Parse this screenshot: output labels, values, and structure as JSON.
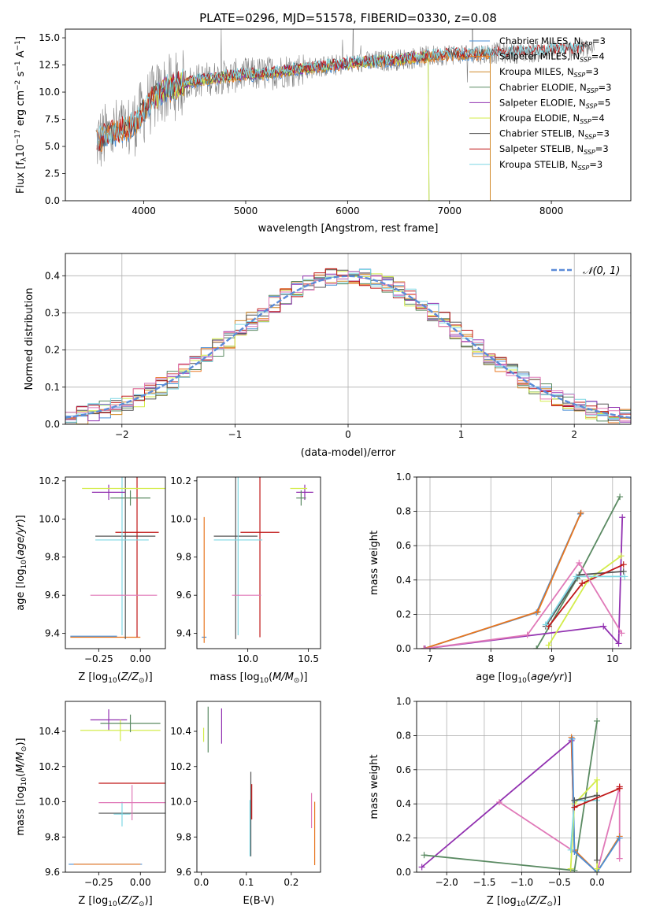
{
  "figure": {
    "title": "PLATE=0296, MJD=51578, FIBERID=0330, z=0.08"
  },
  "colors": {
    "chabrier_miles": "#4a8fd6",
    "salpeter_miles": "#e8761f",
    "kroupa_miles": "#d08a2a",
    "chabrier_elodie": "#5a8a62",
    "salpeter_elodie": "#9130b0",
    "kroupa_elodie": "#d3ec4a",
    "chabrier_stelib": "#555555",
    "salpeter_stelib": "#c01818",
    "kroupa_stelib": "#7fd7e3",
    "data": "#808080",
    "normal": "#5b8bd8",
    "pink": "#e079b8"
  },
  "chart_data": [
    {
      "id": "spectrum",
      "type": "line",
      "xlabel": "wavelength [Angstrom, rest frame]",
      "ylabel": "Flux [fλ10⁻¹⁷ erg cm⁻² s⁻¹ A⁻¹]",
      "xlim": [
        3230,
        8780
      ],
      "ylim": [
        0,
        15.8
      ],
      "xticks": [
        4000,
        5000,
        6000,
        7000,
        8000
      ],
      "yticks": [
        0.0,
        2.5,
        5.0,
        7.5,
        10.0,
        12.5,
        15.0
      ],
      "legend_position": "right",
      "legend": [
        {
          "label": "Chabrier MILES, NSSP=3"
        },
        {
          "label": "Salpeter MILES, NSSP=4"
        },
        {
          "label": "Kroupa MILES, NSSP=3"
        },
        {
          "label": "Chabrier ELODIE, NSSP=3"
        },
        {
          "label": "Salpeter ELODIE, NSSP=5"
        },
        {
          "label": "Kroupa ELODIE, NSSP=4"
        },
        {
          "label": "Chabrier STELIB, NSSP=3"
        },
        {
          "label": "Salpeter STELIB, NSSP=3"
        },
        {
          "label": "Kroupa STELIB, NSSP=3"
        }
      ],
      "continuum_x": [
        3550,
        3700,
        3850,
        3950,
        4050,
        4200,
        4400,
        4600,
        4800,
        5000,
        5200,
        5400,
        5600,
        5800,
        6000,
        6200,
        6400,
        6600,
        6800,
        7000,
        7200,
        7400,
        7600,
        7800,
        8000,
        8200,
        8400
      ],
      "continuum_y": [
        5.5,
        6.3,
        6.6,
        7.6,
        9.0,
        10.2,
        10.8,
        11.2,
        11.4,
        11.6,
        11.7,
        12.0,
        12.2,
        12.4,
        12.6,
        12.8,
        12.9,
        13.1,
        13.3,
        13.5,
        13.5,
        13.6,
        13.6,
        13.7,
        13.8,
        13.9,
        14.0
      ]
    },
    {
      "id": "residuals",
      "type": "line",
      "xlabel": "(data-model)/error",
      "ylabel": "Normed distribution",
      "xlim": [
        -2.5,
        2.5
      ],
      "ylim": [
        0,
        0.46
      ],
      "xticks": [
        -2,
        -1,
        0,
        1,
        2
      ],
      "yticks": [
        0.0,
        0.1,
        0.2,
        0.3,
        0.4
      ],
      "grid": true,
      "legend_position": "top-right",
      "curve_label": "𝒩(0, 1)"
    },
    {
      "id": "z_age",
      "type": "scatter",
      "xlabel": "Z [log10(Z/Z⊙)]",
      "ylabel": "age  [log10(age/yr)]",
      "xlim": [
        -0.45,
        0.15
      ],
      "ylim": [
        9.32,
        10.22
      ],
      "xticks": [
        -0.25,
        0.0
      ],
      "xticklabels": [
        "−0.25",
        "0.00"
      ],
      "yticks": [
        9.4,
        9.6,
        9.8,
        10.0,
        10.2
      ],
      "points": [
        {
          "c": "chabrier_miles",
          "x": -0.28,
          "xerr": 0.14,
          "y": 9.385,
          "yerr": 0.0
        },
        {
          "c": "salpeter_miles",
          "x": -0.21,
          "xerr": 0.21,
          "y": 9.38,
          "yerr": 0.0
        },
        {
          "c": "chabrier_stelib",
          "x": -0.09,
          "xerr": 0.18,
          "y": 9.91,
          "yerr": 0.54
        },
        {
          "c": "salpeter_stelib",
          "x": -0.02,
          "xerr": 0.13,
          "y": 9.93,
          "yerr": 0.55
        },
        {
          "c": "kroupa_stelib",
          "x": -0.11,
          "xerr": 0.16,
          "y": 9.89,
          "yerr": 0.5
        },
        {
          "c": "pink",
          "x": -0.1,
          "xerr": 0.2,
          "y": 9.6,
          "yerr": 0.0
        },
        {
          "c": "salpeter_elodie",
          "x": -0.19,
          "xerr": 0.1,
          "y": 10.14,
          "yerr": 0.04
        },
        {
          "c": "kroupa_elodie",
          "x": -0.1,
          "xerr": 0.25,
          "y": 10.16,
          "yerr": 0.0
        },
        {
          "c": "chabrier_elodie",
          "x": -0.06,
          "xerr": 0.12,
          "y": 10.11,
          "yerr": 0.04
        }
      ]
    },
    {
      "id": "mass_age",
      "type": "scatter",
      "xlabel": "mass [log10(M/M⊙)]",
      "xlim": [
        9.58,
        10.6
      ],
      "ylim": [
        9.32,
        10.22
      ],
      "xticks": [
        10.0,
        10.5
      ],
      "yticks": [
        9.4,
        9.6,
        9.8,
        10.0,
        10.2
      ],
      "points": [
        {
          "c": "chabrier_miles",
          "x": 9.64,
          "xerr": 0.0,
          "y": 9.38,
          "yerr": 0.0
        },
        {
          "c": "salpeter_miles",
          "x": 9.64,
          "xerr": 0.0,
          "y": 9.68,
          "yerr": 0.33
        },
        {
          "c": "chabrier_stelib",
          "x": 9.9,
          "xerr": 0.18,
          "y": 9.91,
          "yerr": 0.54
        },
        {
          "c": "salpeter_stelib",
          "x": 10.1,
          "xerr": 0.16,
          "y": 9.93,
          "yerr": 0.55
        },
        {
          "c": "kroupa_stelib",
          "x": 9.92,
          "xerr": 0.2,
          "y": 9.89,
          "yerr": 0.5
        },
        {
          "c": "pink",
          "x": 9.99,
          "xerr": 0.12,
          "y": 9.6,
          "yerr": 0.0
        },
        {
          "c": "salpeter_elodie",
          "x": 10.47,
          "xerr": 0.07,
          "y": 10.14,
          "yerr": 0.04
        },
        {
          "c": "kroupa_elodie",
          "x": 10.42,
          "xerr": 0.07,
          "y": 10.16,
          "yerr": 0.0
        },
        {
          "c": "chabrier_elodie",
          "x": 10.44,
          "xerr": 0.04,
          "y": 10.11,
          "yerr": 0.04
        }
      ]
    },
    {
      "id": "age_weight",
      "type": "line",
      "xlabel": "age  [log10(age/yr)]",
      "ylabel": "mass weight",
      "xlim": [
        6.78,
        10.3
      ],
      "ylim": [
        0,
        1
      ],
      "xticks": [
        7,
        8,
        9,
        10
      ],
      "yticks": [
        0.0,
        0.2,
        0.4,
        0.6,
        0.8,
        1.0
      ],
      "grid": true,
      "series": [
        {
          "c": "chabrier_miles",
          "x": [
            6.9,
            8.75,
            9.47
          ],
          "y": [
            0.0,
            0.21,
            0.785
          ]
        },
        {
          "c": "salpeter_miles",
          "x": [
            6.9,
            8.77,
            9.48
          ],
          "y": [
            0.0,
            0.215,
            0.79
          ]
        },
        {
          "c": "chabrier_elodie",
          "x": [
            8.75,
            9.42,
            10.12
          ],
          "y": [
            0.0,
            0.41,
            0.885
          ]
        },
        {
          "c": "salpeter_elodie",
          "x": [
            6.92,
            9.85,
            10.1,
            10.16
          ],
          "y": [
            0.0,
            0.13,
            0.03,
            0.765
          ]
        },
        {
          "c": "kroupa_elodie",
          "x": [
            8.95,
            9.6,
            10.14
          ],
          "y": [
            0.02,
            0.4,
            0.54
          ]
        },
        {
          "c": "chabrier_stelib",
          "x": [
            8.9,
            9.45,
            10.18
          ],
          "y": [
            0.13,
            0.43,
            0.45
          ]
        },
        {
          "c": "salpeter_stelib",
          "x": [
            8.95,
            9.5,
            10.18
          ],
          "y": [
            0.13,
            0.38,
            0.49
          ]
        },
        {
          "c": "kroupa_stelib",
          "x": [
            8.9,
            9.4,
            10.2
          ],
          "y": [
            0.14,
            0.42,
            0.42
          ]
        },
        {
          "c": "pink",
          "x": [
            6.9,
            8.6,
            9.45,
            10.15
          ],
          "y": [
            0.0,
            0.08,
            0.5,
            0.09
          ]
        }
      ]
    },
    {
      "id": "z_mass",
      "type": "scatter",
      "xlabel": "Z [log10(Z/Z⊙)]",
      "ylabel": "mass [log10(M/M⊙)]",
      "xlim": [
        -0.45,
        0.15
      ],
      "ylim": [
        9.6,
        10.57
      ],
      "xticks": [
        -0.25,
        0.0
      ],
      "xticklabels": [
        "−0.25",
        "0.00"
      ],
      "yticks": [
        9.6,
        9.8,
        10.0,
        10.2,
        10.4
      ],
      "points": [
        {
          "c": "chabrier_miles",
          "x": -0.21,
          "xerr": 0.22,
          "y": 9.645,
          "yerr": 0.0
        },
        {
          "c": "salpeter_miles",
          "x": -0.2,
          "xerr": 0.2,
          "y": 9.645,
          "yerr": 0.0
        },
        {
          "c": "chabrier_stelib",
          "x": -0.05,
          "xerr": 0.2,
          "y": 9.935,
          "yerr": 0.0
        },
        {
          "c": "salpeter_stelib",
          "x": -0.05,
          "xerr": 0.2,
          "y": 10.105,
          "yerr": 0.0
        },
        {
          "c": "kroupa_stelib",
          "x": -0.11,
          "xerr": 0.05,
          "y": 9.93,
          "yerr": 0.07
        },
        {
          "c": "pink",
          "x": -0.05,
          "xerr": 0.2,
          "y": 9.995,
          "yerr": 0.1
        },
        {
          "c": "salpeter_elodie",
          "x": -0.19,
          "xerr": 0.11,
          "y": 10.465,
          "yerr": 0.06
        },
        {
          "c": "kroupa_elodie",
          "x": -0.12,
          "xerr": 0.24,
          "y": 10.405,
          "yerr": 0.06
        },
        {
          "c": "chabrier_elodie",
          "x": -0.06,
          "xerr": 0.18,
          "y": 10.445,
          "yerr": 0.05
        }
      ]
    },
    {
      "id": "ebv_mass",
      "type": "scatter",
      "xlabel": "E(B-V)",
      "xlim": [
        -0.01,
        0.265
      ],
      "ylim": [
        9.6,
        10.57
      ],
      "xticks": [
        0.0,
        0.1,
        0.2
      ],
      "yticks": [
        9.6,
        9.8,
        10.0,
        10.2,
        10.4
      ],
      "points": [
        {
          "c": "kroupa_elodie",
          "x": 0.005,
          "y": 10.38,
          "yerr": 0.04
        },
        {
          "c": "chabrier_elodie",
          "x": 0.015,
          "y": 10.41,
          "yerr": 0.13
        },
        {
          "c": "salpeter_elodie",
          "x": 0.045,
          "y": 10.43,
          "yerr": 0.1
        },
        {
          "c": "chabrier_stelib",
          "x": 0.11,
          "y": 9.93,
          "yerr": 0.24
        },
        {
          "c": "salpeter_stelib",
          "x": 0.112,
          "y": 10.0,
          "yerr": 0.1
        },
        {
          "c": "kroupa_stelib",
          "x": 0.108,
          "y": 9.85,
          "yerr": 0.16
        },
        {
          "c": "pink",
          "x": 0.245,
          "y": 9.95,
          "yerr": 0.1
        },
        {
          "c": "salpeter_miles",
          "x": 0.252,
          "y": 9.82,
          "yerr": 0.18
        }
      ]
    },
    {
      "id": "z_weight",
      "type": "line",
      "xlabel": "Z [log10(Z/Z⊙)]",
      "ylabel": "mass weight",
      "xlim": [
        -2.4,
        0.45
      ],
      "ylim": [
        0,
        1
      ],
      "xticks": [
        -2.0,
        -1.5,
        -1.0,
        -0.5,
        0.0
      ],
      "xticklabels": [
        "−2.0",
        "−1.5",
        "−1.0",
        "−0.5",
        "0.0"
      ],
      "yticks": [
        0.0,
        0.2,
        0.4,
        0.6,
        0.8,
        1.0
      ],
      "grid": true,
      "series": [
        {
          "c": "salpeter_elodie",
          "x": [
            -2.33,
            -0.34,
            -0.3
          ],
          "y": [
            0.03,
            0.77,
            0.13
          ]
        },
        {
          "c": "chabrier_elodie",
          "x": [
            -2.3,
            -0.3,
            0.0
          ],
          "y": [
            0.1,
            0.01,
            0.885
          ]
        },
        {
          "c": "pink",
          "x": [
            -1.3,
            -0.3,
            0.0,
            0.3,
            0.3
          ],
          "y": [
            0.41,
            0.12,
            0.0,
            0.5,
            0.08
          ]
        },
        {
          "c": "salpeter_miles",
          "x": [
            -0.34,
            -0.3,
            0.0,
            0.3
          ],
          "y": [
            0.79,
            0.13,
            0.0,
            0.21
          ]
        },
        {
          "c": "chabrier_miles",
          "x": [
            -0.33,
            -0.3,
            0.0,
            0.3
          ],
          "y": [
            0.78,
            0.12,
            0.0,
            0.2
          ]
        },
        {
          "c": "kroupa_elodie",
          "x": [
            -0.35,
            -0.3,
            0.0,
            0.0
          ],
          "y": [
            0.02,
            0.4,
            0.54,
            0.02
          ]
        },
        {
          "c": "kroupa_stelib",
          "x": [
            -0.35,
            -0.3,
            0.0
          ],
          "y": [
            0.13,
            0.42,
            0.42
          ]
        },
        {
          "c": "chabrier_stelib",
          "x": [
            -0.3,
            0.0,
            0.0
          ],
          "y": [
            0.42,
            0.45,
            0.07
          ]
        },
        {
          "c": "salpeter_stelib",
          "x": [
            -0.3,
            0.3,
            0.3
          ],
          "y": [
            0.38,
            0.49,
            0.5
          ]
        }
      ]
    }
  ]
}
